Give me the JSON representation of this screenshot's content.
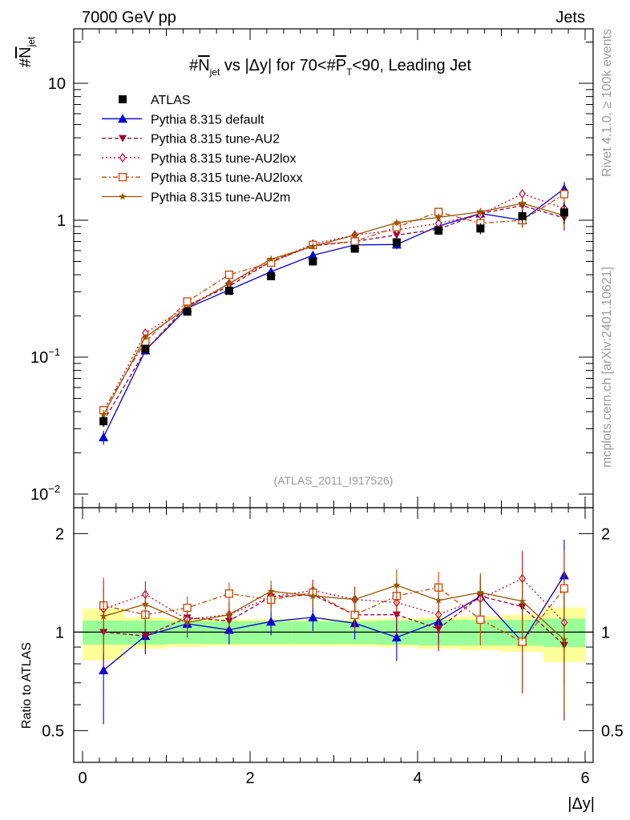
{
  "header": {
    "left": "7000 GeV pp",
    "right": "Jets"
  },
  "side": {
    "rivet": "Rivet 4.1.0, ≥ 100k events",
    "mcplots": "mcplots.cern.ch [arXiv:2401.10621]"
  },
  "chart_data": {
    "type": "line",
    "title": "#N_jet vs |Δy| for 70<#P_T<90, Leading Jet",
    "title_parts": {
      "a": "#",
      "b": "N",
      "c": "jet",
      "d": " vs |Δy| for 70<#",
      "e": "P",
      "f": "T",
      "g": "<90, Leading Jet"
    },
    "ylabel_parts": {
      "a": "#",
      "b": "N",
      "c": "jet"
    },
    "xlabel": "|Δy|",
    "ratio_ylabel": "Ratio to ATLAS",
    "watermark": "(ATLAS_2011_I917526)",
    "xlim": [
      0,
      6
    ],
    "ylim": [
      0.01,
      25
    ],
    "ratio_ylim": [
      0.4,
      2.4
    ],
    "yscale": "log",
    "x_ticks": [
      "0",
      "2",
      "4",
      "6"
    ],
    "y_ticks": [
      {
        "base": "10",
        "exp": "−2",
        "value": 0.01
      },
      {
        "base": "10",
        "exp": "−1",
        "value": 0.1
      },
      {
        "base": "1",
        "exp": "",
        "value": 1
      },
      {
        "base": "10",
        "exp": "",
        "value": 10
      }
    ],
    "ratio_ticks": [
      "0.5",
      "1",
      "2"
    ],
    "x": [
      0.25,
      0.75,
      1.25,
      1.75,
      2.25,
      2.75,
      3.25,
      3.75,
      4.25,
      4.75,
      5.25,
      5.75
    ],
    "ref_band_inner": [
      0.085,
      0.085,
      0.08,
      0.08,
      0.08,
      0.08,
      0.08,
      0.085,
      0.09,
      0.09,
      0.09,
      0.1
    ],
    "ref_band_outer": [
      0.18,
      0.11,
      0.1,
      0.095,
      0.095,
      0.095,
      0.095,
      0.1,
      0.11,
      0.12,
      0.13,
      0.19
    ],
    "series": [
      {
        "name": "ATLAS",
        "key": "data",
        "color": "#000000",
        "dash": "",
        "marker": "square",
        "values": [
          0.034,
          0.115,
          0.215,
          0.305,
          0.39,
          0.5,
          0.62,
          0.69,
          0.84,
          0.87,
          1.07,
          1.14
        ],
        "errors": [
          0.003,
          0.006,
          0.008,
          0.012,
          0.015,
          0.02,
          0.03,
          0.05,
          0.06,
          0.08,
          0.12,
          0.2
        ]
      },
      {
        "name": "Pythia 8.315 default",
        "key": "default",
        "color": "#0000dd",
        "dash": "",
        "marker": "triangle",
        "values": [
          0.026,
          0.112,
          0.228,
          0.31,
          0.42,
          0.555,
          0.66,
          0.665,
          0.905,
          1.12,
          1.0,
          1.7
        ],
        "errors": [
          0.003,
          0.006,
          0.008,
          0.012,
          0.015,
          0.02,
          0.03,
          0.05,
          0.06,
          0.08,
          0.12,
          0.2
        ]
      },
      {
        "name": "Pythia 8.315 tune-AU2",
        "key": "au2",
        "color": "#990033",
        "dash": "5,3",
        "marker": "tri-down",
        "values": [
          0.034,
          0.112,
          0.238,
          0.33,
          0.5,
          0.65,
          0.7,
          0.78,
          0.86,
          1.12,
          1.28,
          1.04
        ],
        "errors": [
          0.003,
          0.006,
          0.008,
          0.012,
          0.015,
          0.02,
          0.03,
          0.05,
          0.06,
          0.08,
          0.12,
          0.2
        ]
      },
      {
        "name": "Pythia 8.315 tune-AU2lox",
        "key": "au2lox",
        "color": "#cc0033",
        "dash": "2,3",
        "marker": "diamond",
        "values": [
          0.04,
          0.15,
          0.235,
          0.345,
          0.5,
          0.67,
          0.78,
          0.85,
          0.95,
          1.1,
          1.56,
          1.22
        ],
        "errors": [
          0.003,
          0.006,
          0.008,
          0.012,
          0.015,
          0.02,
          0.03,
          0.05,
          0.06,
          0.08,
          0.12,
          0.2
        ]
      },
      {
        "name": "Pythia 8.315 tune-AU2loxx",
        "key": "au2loxx",
        "color": "#cc4400",
        "dash": "6,3,2,3",
        "marker": "open-square",
        "values": [
          0.041,
          0.13,
          0.255,
          0.4,
          0.49,
          0.66,
          0.7,
          0.89,
          1.15,
          0.95,
          1.0,
          1.55
        ],
        "errors": [
          0.003,
          0.006,
          0.008,
          0.012,
          0.015,
          0.02,
          0.03,
          0.05,
          0.06,
          0.08,
          0.12,
          0.2
        ]
      },
      {
        "name": "Pythia 8.315 tune-AU2m",
        "key": "au2m",
        "color": "#995500",
        "dash": "",
        "marker": "star",
        "values": [
          0.038,
          0.14,
          0.23,
          0.345,
          0.52,
          0.645,
          0.78,
          0.96,
          1.05,
          1.15,
          1.33,
          1.08
        ],
        "errors": [
          0.003,
          0.006,
          0.008,
          0.012,
          0.015,
          0.02,
          0.03,
          0.05,
          0.06,
          0.08,
          0.12,
          0.2
        ]
      }
    ]
  }
}
